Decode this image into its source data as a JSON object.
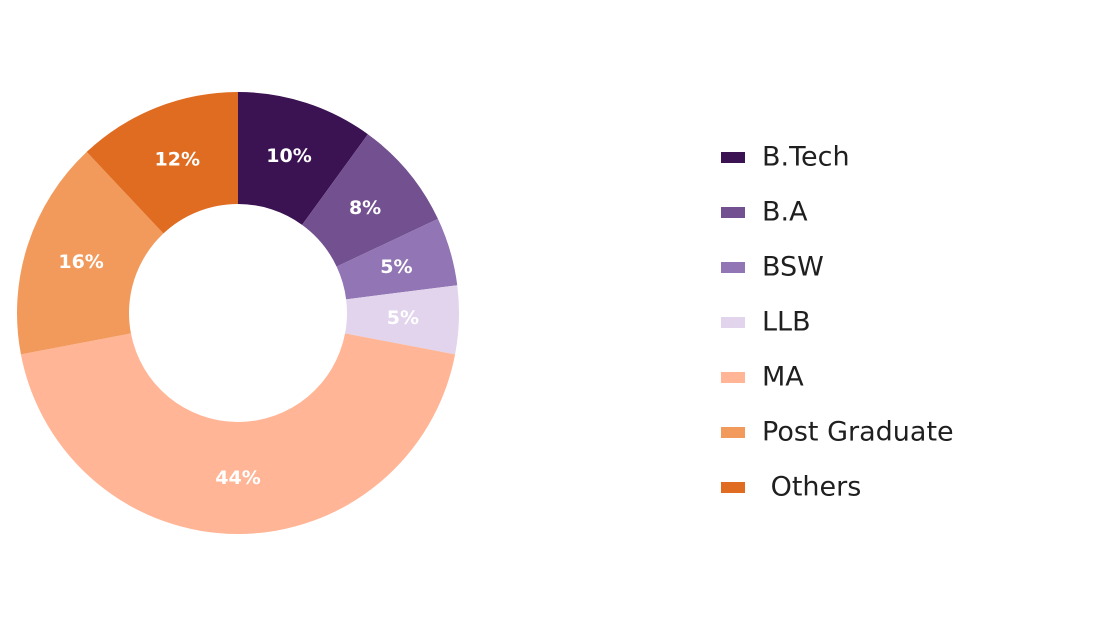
{
  "chart_data": {
    "type": "pie",
    "variant": "donut",
    "title": "",
    "categories": [
      "B.Tech",
      "B.A",
      "BSW",
      "LLB",
      "MA",
      "Post Graduate",
      " Others"
    ],
    "values": [
      10,
      8,
      5,
      5,
      44,
      16,
      12
    ],
    "value_labels": [
      "10%",
      "8%",
      "5%",
      "5%",
      "44%",
      "16%",
      "12%"
    ],
    "colors": [
      "#3b1252",
      "#735090",
      "#9275b4",
      "#e1d4ec",
      "#ffb596",
      "#f29a5c",
      "#e06c21"
    ],
    "legend_placement": "right",
    "start_angle_deg": 0,
    "direction": "clockwise"
  }
}
